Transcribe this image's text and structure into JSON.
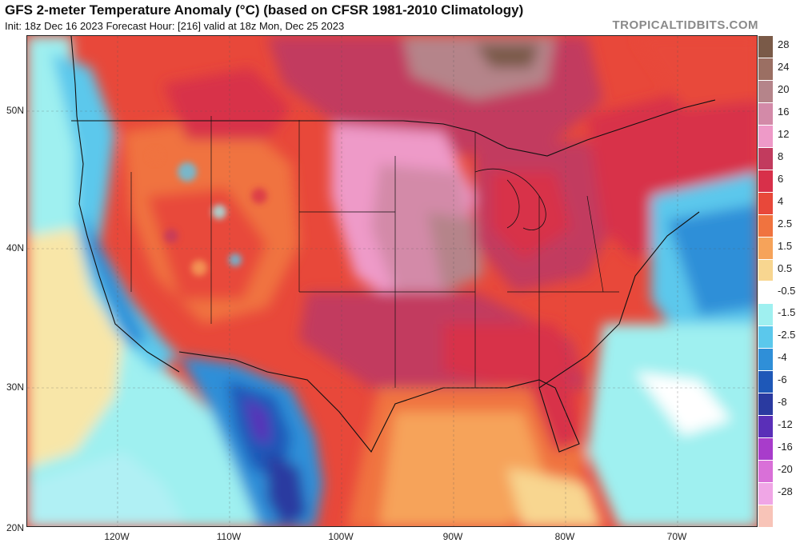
{
  "header": {
    "title": "GFS 2-meter Temperature Anomaly (°C) (based on CFSR 1981-2010 Climatology)",
    "subtitle": "Init: 18z Dec 16 2023   Forecast Hour: [216]   valid at 18z Mon, Dec 25 2023",
    "brand": "TROPICALTIDBITS.COM"
  },
  "axes": {
    "lat_labels": [
      "50N",
      "40N",
      "30N",
      "20N"
    ],
    "lon_labels": [
      "120W",
      "110W",
      "100W",
      "90W",
      "80W",
      "70W"
    ]
  },
  "colorbar": {
    "levels": [
      {
        "label": "28",
        "color": "#7a5a48"
      },
      {
        "label": "24",
        "color": "#9b6f63"
      },
      {
        "label": "20",
        "color": "#b5848a"
      },
      {
        "label": "16",
        "color": "#d38aa8"
      },
      {
        "label": "12",
        "color": "#ee9ac8"
      },
      {
        "label": "8",
        "color": "#c23b5e"
      },
      {
        "label": "6",
        "color": "#d8304a"
      },
      {
        "label": "4",
        "color": "#e8483a"
      },
      {
        "label": "2.5",
        "color": "#f0733f"
      },
      {
        "label": "1.5",
        "color": "#f6a35a"
      },
      {
        "label": "0.5",
        "color": "#f8d690"
      },
      {
        "label": "-0.5",
        "color": "#ffffff"
      },
      {
        "label": "-1.5",
        "color": "#9ff0f0"
      },
      {
        "label": "-2.5",
        "color": "#5bc8ec"
      },
      {
        "label": "-4",
        "color": "#2f8fd8"
      },
      {
        "label": "-6",
        "color": "#1e58b8"
      },
      {
        "label": "-8",
        "color": "#2a3aa0"
      },
      {
        "label": "-12",
        "color": "#5a2fb8"
      },
      {
        "label": "-16",
        "color": "#a83ccb"
      },
      {
        "label": "-20",
        "color": "#d970d8"
      },
      {
        "label": "-28",
        "color": "#f0a6e6"
      },
      {
        "label": "",
        "color": "#f8c4b8"
      }
    ]
  },
  "map": {
    "ocean_colors": {
      "pacific": "#7fe4f0",
      "atlantic_cold": "#3d86d6",
      "gulf": "#f29a52"
    }
  }
}
